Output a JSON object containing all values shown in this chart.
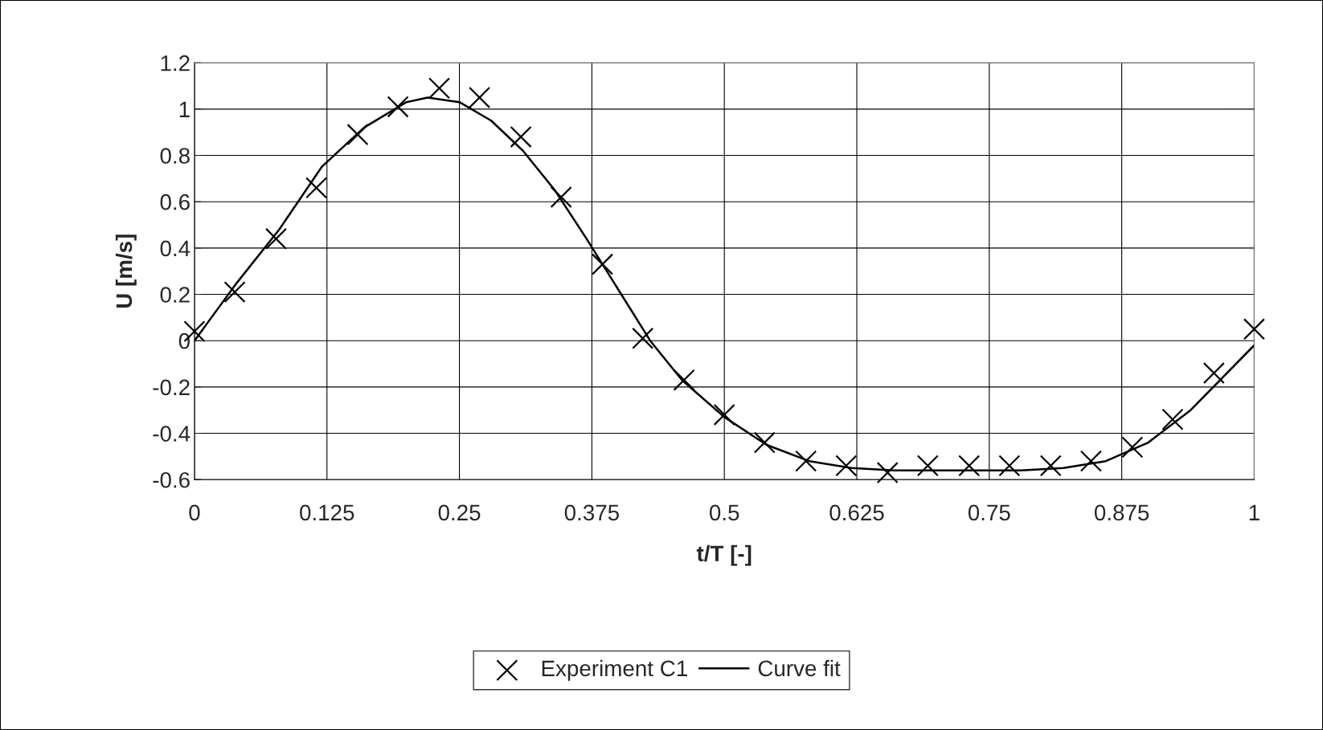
{
  "chart_data": {
    "type": "scatter",
    "xlabel": "t/T [-]",
    "ylabel": "U [m/s]",
    "xlim": [
      0,
      1
    ],
    "ylim": [
      -0.6,
      1.2
    ],
    "xticks": [
      0,
      0.125,
      0.25,
      0.375,
      0.5,
      0.625,
      0.75,
      0.875,
      1
    ],
    "yticks": [
      -0.6,
      -0.4,
      -0.2,
      0,
      0.2,
      0.4,
      0.6,
      0.8,
      1,
      1.2
    ],
    "grid": true,
    "legend": "bottom",
    "series": [
      {
        "name": "Experiment C1",
        "marker": "cross",
        "color": "#000000",
        "x": [
          0,
          0.038,
          0.077,
          0.115,
          0.154,
          0.192,
          0.231,
          0.269,
          0.308,
          0.346,
          0.385,
          0.423,
          0.462,
          0.5,
          0.538,
          0.577,
          0.615,
          0.654,
          0.692,
          0.731,
          0.769,
          0.808,
          0.846,
          0.885,
          0.923,
          0.962,
          1
        ],
        "values": [
          0.04,
          0.21,
          0.44,
          0.66,
          0.89,
          1.01,
          1.09,
          1.05,
          0.88,
          0.62,
          0.33,
          0.01,
          -0.17,
          -0.32,
          -0.44,
          -0.52,
          -0.54,
          -0.57,
          -0.54,
          -0.54,
          -0.54,
          -0.54,
          -0.52,
          -0.46,
          -0.34,
          -0.14,
          0.05
        ]
      },
      {
        "name": "Curve fit",
        "type": "line",
        "marker": "none",
        "line_style": "solid",
        "color": "#000000",
        "x": [
          0,
          0.04,
          0.08,
          0.12,
          0.16,
          0.2,
          0.22,
          0.25,
          0.28,
          0.31,
          0.34,
          0.37,
          0.4,
          0.43,
          0.46,
          0.5,
          0.54,
          0.58,
          0.62,
          0.66,
          0.7,
          0.74,
          0.78,
          0.82,
          0.86,
          0.9,
          0.94,
          0.97,
          1
        ],
        "values": [
          0.0,
          0.25,
          0.48,
          0.75,
          0.92,
          1.03,
          1.05,
          1.03,
          0.95,
          0.82,
          0.65,
          0.44,
          0.22,
          0.0,
          -0.17,
          -0.33,
          -0.45,
          -0.52,
          -0.55,
          -0.56,
          -0.56,
          -0.56,
          -0.56,
          -0.55,
          -0.52,
          -0.44,
          -0.3,
          -0.16,
          -0.02
        ]
      }
    ]
  }
}
